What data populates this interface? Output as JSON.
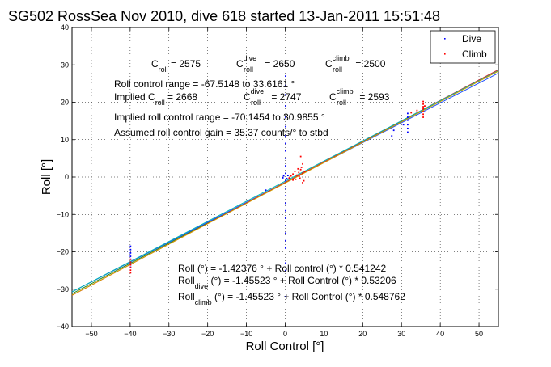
{
  "chart_data": {
    "type": "scatter",
    "title": "SG502 RossSea Nov 2010, dive 618 started 13-Jan-2011 15:51:48",
    "xlabel": "Roll Control [°]",
    "ylabel": "Roll [°]",
    "xlim": [
      -55,
      55
    ],
    "ylim": [
      -40,
      40
    ],
    "xticks": [
      -50,
      -40,
      -30,
      -20,
      -10,
      0,
      10,
      20,
      30,
      40,
      50
    ],
    "yticks": [
      -40,
      -30,
      -20,
      -10,
      0,
      10,
      20,
      30,
      40
    ],
    "grid": true,
    "legend_position": "top-right",
    "legend": [
      {
        "label": "Dive",
        "color": "#0000ff"
      },
      {
        "label": "Climb",
        "color": "#ff0000"
      }
    ],
    "series": [
      {
        "name": "Dive",
        "color": "#0000ff",
        "points": [
          [
            -39.9,
            -18.5
          ],
          [
            -39.9,
            -19.4
          ],
          [
            -39.9,
            -20.3
          ],
          [
            -39.9,
            -21.2
          ],
          [
            -39.9,
            -22.0
          ],
          [
            -39.9,
            -22.8
          ],
          [
            -39.9,
            -23.4
          ],
          [
            -39.9,
            -24.1
          ],
          [
            0.1,
            27.0
          ],
          [
            0.1,
            24.5
          ],
          [
            0.1,
            22.0
          ],
          [
            0.1,
            19.0
          ],
          [
            0.1,
            16.0
          ],
          [
            0.1,
            13.5
          ],
          [
            0.1,
            11.0
          ],
          [
            0.1,
            9.0
          ],
          [
            0.1,
            7.0
          ],
          [
            0.1,
            5.0
          ],
          [
            0.1,
            3.0
          ],
          [
            0.1,
            1.0
          ],
          [
            0.1,
            -1.0
          ],
          [
            0.1,
            -3.0
          ],
          [
            0.1,
            -5.0
          ],
          [
            0.1,
            -7.0
          ],
          [
            0.1,
            -9.0
          ],
          [
            0.1,
            -11.0
          ],
          [
            0.1,
            -13.0
          ],
          [
            0.1,
            -15.0
          ],
          [
            0.1,
            -17.0
          ],
          [
            0.1,
            -19.0
          ],
          [
            0.1,
            -23.0
          ],
          [
            0.1,
            -25.0
          ],
          [
            0.1,
            -32.0
          ],
          [
            -0.6,
            -0.2
          ],
          [
            -0.4,
            0.3
          ],
          [
            0.4,
            -0.4
          ],
          [
            0.7,
            0.4
          ],
          [
            -5.0,
            -3.5
          ],
          [
            31.6,
            17.0
          ],
          [
            31.6,
            16.0
          ],
          [
            31.6,
            15.2
          ],
          [
            31.6,
            14.0
          ],
          [
            31.6,
            13.0
          ],
          [
            31.6,
            12.0
          ],
          [
            27.5,
            11.0
          ],
          [
            28.0,
            12.5
          ],
          [
            30.5,
            14.0
          ]
        ]
      },
      {
        "name": "Climb",
        "color": "#ff0000",
        "points": [
          [
            -39.9,
            -22.0
          ],
          [
            -39.9,
            -22.8
          ],
          [
            -39.9,
            -23.5
          ],
          [
            -39.9,
            -24.2
          ],
          [
            -39.9,
            -24.9
          ],
          [
            -39.9,
            -25.6
          ],
          [
            1.5,
            0.3
          ],
          [
            2.0,
            0.8
          ],
          [
            2.5,
            1.5
          ],
          [
            3.0,
            0.5
          ],
          [
            3.5,
            1.2
          ],
          [
            4.0,
            2.0
          ],
          [
            4.5,
            1.0
          ],
          [
            3.8,
            -0.3
          ],
          [
            4.2,
            2.6
          ],
          [
            4.8,
            -1.0
          ],
          [
            2.7,
            -0.6
          ],
          [
            3.3,
            2.2
          ],
          [
            5.0,
            1.5
          ],
          [
            4.5,
            3.5
          ],
          [
            4.0,
            5.5
          ],
          [
            4.5,
            -1.5
          ],
          [
            2.0,
            -0.8
          ],
          [
            1.0,
            -0.3
          ],
          [
            3.6,
            0.2
          ],
          [
            35.6,
            20.2
          ],
          [
            35.6,
            19.5
          ],
          [
            35.6,
            18.8
          ],
          [
            35.6,
            18.2
          ],
          [
            35.6,
            17.5
          ],
          [
            35.6,
            16.8
          ],
          [
            35.6,
            16.0
          ],
          [
            34.0,
            17.8
          ],
          [
            32.5,
            17.2
          ],
          [
            36.0,
            19.0
          ]
        ]
      }
    ],
    "fit_lines": [
      {
        "intercept": -1.42376,
        "slope": 0.541242,
        "color": "#1f8a1f"
      },
      {
        "intercept": -1.45523,
        "slope": 0.53206,
        "color": "#2050ff"
      },
      {
        "intercept": -1.45523,
        "slope": 0.548762,
        "color": "#e02020"
      },
      {
        "intercept": -1.1,
        "slope": 0.538,
        "color": "#00b4b4"
      },
      {
        "intercept": -1.6,
        "slope": 0.545,
        "color": "#d0a000"
      }
    ],
    "annotations": {
      "c_roll": {
        "base": "C",
        "sub": "roll",
        "value": " = 2575"
      },
      "c_roll_dive": {
        "base": "C",
        "sup": "dive",
        "sub": "roll",
        "value": " = 2650"
      },
      "c_roll_climb": {
        "base": "C",
        "sup": "climb",
        "sub": "roll",
        "value": " = 2500"
      },
      "roll_control_range": "Roll control range = -67.5148 to 33.6161 °",
      "implied_label": "Implied C",
      "implied_sub": "roll",
      "implied_value": " = 2668",
      "implied_dive": {
        "base": "C",
        "sup": "dive",
        "sub": "roll",
        "value": " = 2747"
      },
      "implied_climb": {
        "base": "C",
        "sup": "climb",
        "sub": "roll",
        "value": " = 2593"
      },
      "implied_range": "Implied roll control range = -70.1454 to 30.9855 °",
      "assumed_gain": "Assumed roll control gain = 35.37 counts/° to stbd",
      "eq_roll": "Roll (°) = -1.42376 ° + Roll control (°) * 0.541242",
      "eq_dive_base": "Roll",
      "eq_dive_sub": "dive",
      "eq_dive_rest": " (°) = -1.45523 ° + Roll Control (°) * 0.53206",
      "eq_climb_base": "Roll",
      "eq_climb_sub": "climb",
      "eq_climb_rest": " (°) = -1.45523 ° + Roll Control (°) * 0.548762"
    }
  }
}
